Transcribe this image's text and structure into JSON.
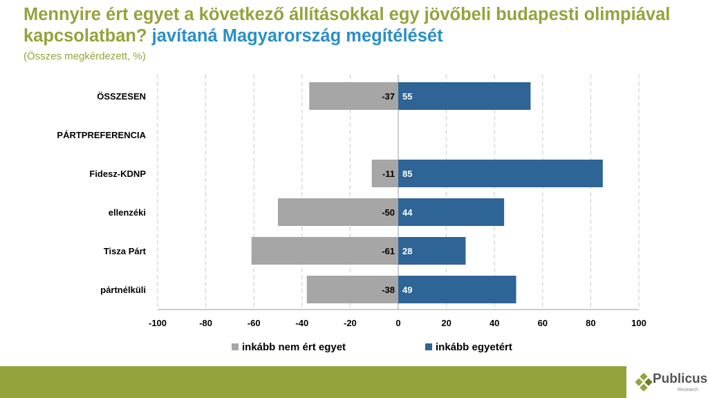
{
  "title": {
    "main": "Mennyire ért egyet a következő állításokkal egy jövőbeli budapesti olimpiával kapcsolatban?",
    "highlight": "javítaná Magyarország megítélését",
    "subtitle": "(Összes megkérdezett, %)"
  },
  "chart_data": {
    "type": "bar",
    "orientation": "horizontal",
    "stacked": "diverging",
    "categories": [
      "ÖSSZESEN",
      "PÁRTPREFERENCIA",
      "Fidesz-KDNP",
      "ellenzéki",
      "Tisza Párt",
      "pártnélküli"
    ],
    "series": [
      {
        "name": "inkább nem ért egyet",
        "color": "#a6a6a6",
        "values": [
          -37,
          null,
          -11,
          -50,
          -61,
          -38
        ]
      },
      {
        "name": "inkább egyetért",
        "color": "#2e6496",
        "values": [
          55,
          null,
          85,
          44,
          28,
          49
        ]
      }
    ],
    "xlim": [
      -100,
      100
    ],
    "xticks": [
      -100,
      -80,
      -60,
      -40,
      -20,
      0,
      20,
      40,
      60,
      80,
      100
    ],
    "grid": "vertical dashed",
    "legend": "bottom"
  },
  "brand": {
    "name": "Publicus",
    "sub": "Research",
    "band_color": "#96a23c"
  }
}
